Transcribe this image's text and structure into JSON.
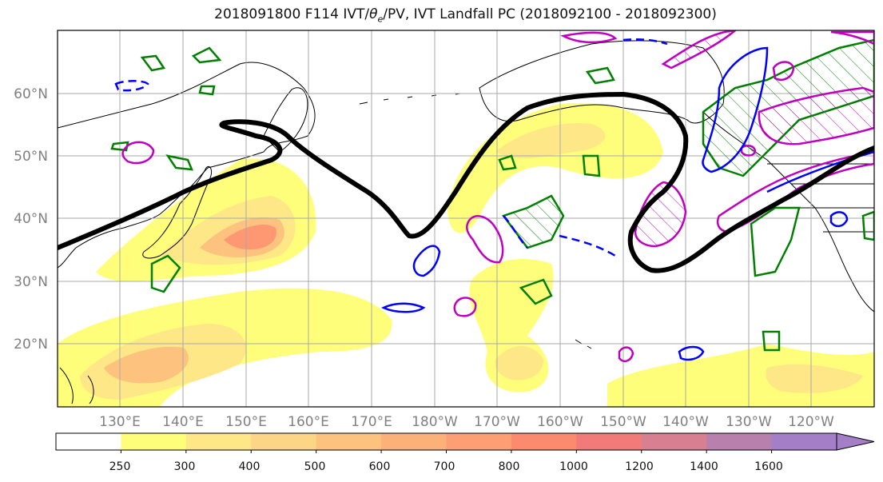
{
  "title": {
    "prefix": "2018091800 F114 IVT/",
    "theta": "θ",
    "sub": "e",
    "suffix": "/PV, IVT Landfall PC (2018092100 - 2018092300)"
  },
  "lat_labels": [
    "60°N",
    "50°N",
    "40°N",
    "30°N",
    "20°N"
  ],
  "lon_labels": [
    "130°E",
    "140°E",
    "150°E",
    "160°E",
    "170°E",
    "180°W",
    "170°W",
    "160°W",
    "150°W",
    "140°W",
    "130°W",
    "120°W"
  ],
  "colorbar": {
    "tick_labels": [
      "250",
      "300",
      "400",
      "500",
      "600",
      "700",
      "800",
      "1000",
      "1200",
      "1400",
      "1600"
    ],
    "colors": [
      "#ffffff",
      "#fffe7a",
      "#fde787",
      "#fdd587",
      "#fdc27d",
      "#fcb178",
      "#fd9e75",
      "#fc8a6f",
      "#f27a78",
      "#d97f92",
      "#b880ad",
      "#a47fc7"
    ]
  },
  "contour_colors": {
    "ivt_pc": "#000000",
    "theta_e": "#008000",
    "pv_positive": "#c000c0",
    "pv_negative": "#0000ff"
  }
}
